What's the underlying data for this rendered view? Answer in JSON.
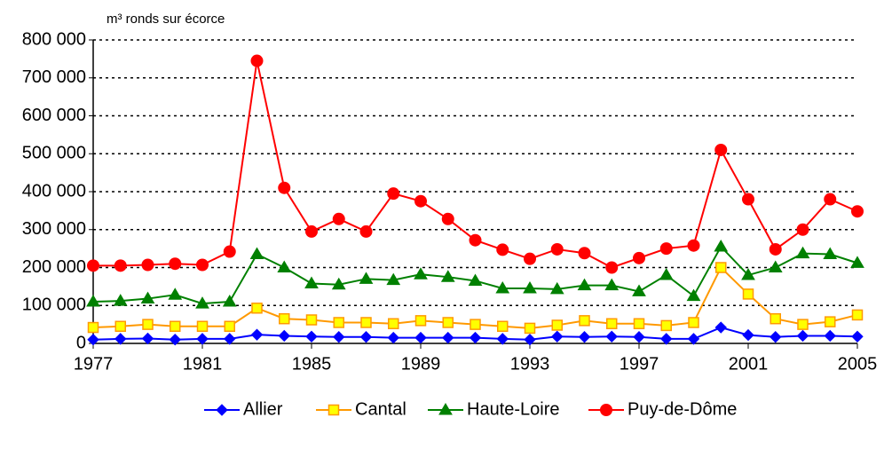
{
  "chart_data": {
    "type": "line",
    "y_label": "m³ ronds sur écorce",
    "x": [
      1977,
      1978,
      1979,
      1980,
      1981,
      1982,
      1983,
      1984,
      1985,
      1986,
      1987,
      1988,
      1989,
      1990,
      1991,
      1992,
      1993,
      1994,
      1995,
      1996,
      1997,
      1998,
      1999,
      2000,
      2001,
      2002,
      2003,
      2004,
      2005
    ],
    "xlim": [
      1977,
      2005
    ],
    "xticks": [
      1977,
      1981,
      1985,
      1989,
      1993,
      1997,
      2001,
      2005
    ],
    "ylim": [
      0,
      800000
    ],
    "yticks": [
      0,
      {
        "value": 100000,
        "label": "100 000"
      },
      {
        "value": 200000,
        "label": "200 000"
      },
      {
        "value": 300000,
        "label": "300 000"
      },
      {
        "value": 400000,
        "label": "400 000"
      },
      {
        "value": 500000,
        "label": "500 000"
      },
      {
        "value": 600000,
        "label": "600 000"
      },
      {
        "value": 700000,
        "label": "700 000"
      },
      {
        "value": 800000,
        "label": "800 000"
      }
    ],
    "grid": true,
    "legend": "bottom",
    "series": [
      {
        "name": "Allier",
        "color": "#0000ff",
        "marker": "diamond",
        "values": [
          10000,
          12000,
          13000,
          10000,
          12000,
          12000,
          23000,
          20000,
          18000,
          17000,
          17000,
          15000,
          15000,
          15000,
          15000,
          12000,
          10000,
          18000,
          17000,
          18000,
          17000,
          12000,
          12000,
          42000,
          22000,
          17000,
          20000,
          20000,
          18000
        ]
      },
      {
        "name": "Cantal",
        "color": "#ff9900",
        "marker": "square",
        "marker_fill": "#ffff00",
        "values": [
          42000,
          45000,
          50000,
          45000,
          45000,
          45000,
          93000,
          65000,
          62000,
          55000,
          55000,
          52000,
          60000,
          55000,
          50000,
          45000,
          40000,
          48000,
          60000,
          52000,
          52000,
          47000,
          55000,
          200000,
          130000,
          65000,
          50000,
          57000,
          75000
        ]
      },
      {
        "name": "Haute-Loire",
        "color": "#008000",
        "marker": "triangle",
        "values": [
          110000,
          112000,
          118000,
          128000,
          105000,
          110000,
          235000,
          200000,
          158000,
          155000,
          170000,
          167000,
          182000,
          175000,
          165000,
          145000,
          145000,
          143000,
          153000,
          153000,
          137000,
          180000,
          125000,
          255000,
          180000,
          200000,
          237000,
          235000,
          212000
        ]
      },
      {
        "name": "Puy-de-Dôme",
        "color": "#ff0000",
        "marker": "circle",
        "values": [
          205000,
          205000,
          207000,
          210000,
          207000,
          242000,
          745000,
          410000,
          295000,
          328000,
          295000,
          395000,
          375000,
          328000,
          272000,
          247000,
          223000,
          248000,
          238000,
          200000,
          225000,
          250000,
          258000,
          510000,
          380000,
          248000,
          300000,
          380000,
          348000
        ]
      }
    ]
  }
}
